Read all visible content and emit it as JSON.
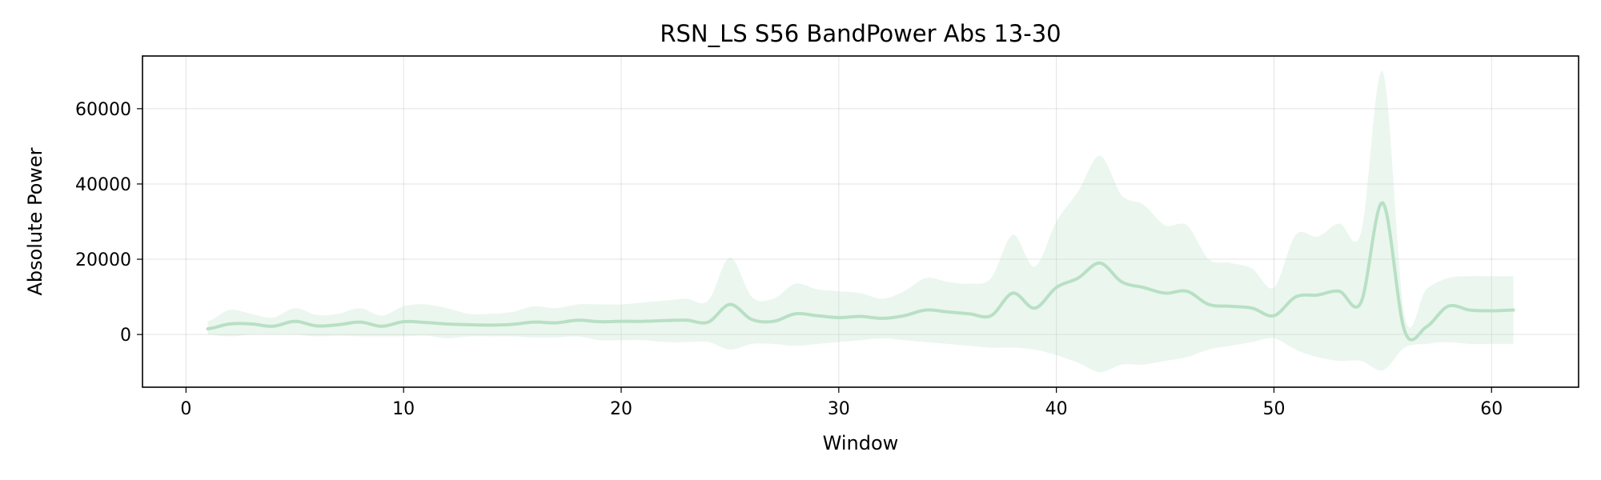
{
  "chart_data": {
    "type": "line",
    "title": "RSN_LS S56 BandPower Abs 13-30",
    "xlabel": "Window",
    "ylabel": "Absolute Power",
    "xlim": [
      -2,
      64
    ],
    "ylim": [
      -14000,
      74000
    ],
    "xticks": [
      0,
      10,
      20,
      30,
      40,
      50,
      60
    ],
    "yticks": [
      0,
      20000,
      40000,
      60000
    ],
    "grid": true,
    "line_color": "#b8e0c4",
    "band_color": "#b8e0c4",
    "x": [
      1,
      2,
      3,
      4,
      5,
      6,
      7,
      8,
      9,
      10,
      11,
      12,
      13,
      14,
      15,
      16,
      17,
      18,
      19,
      20,
      21,
      22,
      23,
      24,
      25,
      26,
      27,
      28,
      29,
      30,
      31,
      32,
      33,
      34,
      35,
      36,
      37,
      38,
      39,
      40,
      41,
      42,
      43,
      44,
      45,
      46,
      47,
      48,
      49,
      50,
      51,
      52,
      53,
      54,
      55,
      56,
      57,
      58,
      59,
      60,
      61
    ],
    "series": [
      {
        "mean": [
          1500,
          2800,
          2800,
          2200,
          3500,
          2300,
          2600,
          3300,
          2200,
          3400,
          3200,
          2800,
          2600,
          2500,
          2700,
          3300,
          3100,
          3800,
          3400,
          3500,
          3500,
          3700,
          3800,
          3300,
          8000,
          4000,
          3500,
          5500,
          5000,
          4500,
          4800,
          4300,
          5000,
          6500,
          6000,
          5500,
          5000,
          11000,
          7000,
          12500,
          15000,
          19000,
          14000,
          12500,
          11000,
          11500,
          8000,
          7500,
          7000,
          5000,
          10000,
          10500,
          11500,
          8500,
          35000,
          1000,
          2000,
          7500,
          6500,
          6300,
          6500
        ],
        "upper": [
          3500,
          6500,
          5500,
          4500,
          7000,
          5200,
          5500,
          7000,
          5000,
          7500,
          8000,
          7000,
          5500,
          5500,
          6000,
          7500,
          7000,
          8000,
          8000,
          8000,
          8500,
          9000,
          9500,
          9000,
          20500,
          10000,
          9500,
          13500,
          12000,
          11500,
          11000,
          9500,
          11500,
          15000,
          14000,
          13500,
          15000,
          26500,
          18000,
          30000,
          38000,
          47500,
          37000,
          34500,
          29000,
          29000,
          20000,
          19000,
          17500,
          12500,
          26500,
          26000,
          29500,
          27000,
          70000,
          5000,
          12000,
          15000,
          15500,
          15500,
          15500
        ],
        "lower": [
          0,
          -500,
          0,
          0,
          0,
          -500,
          -300,
          -500,
          -500,
          -500,
          -300,
          -1000,
          -500,
          -500,
          -500,
          -800,
          -800,
          -500,
          -1500,
          -1500,
          -1500,
          -2000,
          -2000,
          -2000,
          -4000,
          -2500,
          -2500,
          -3000,
          -2500,
          -2000,
          -1500,
          -1000,
          -1500,
          -2000,
          -2500,
          -3000,
          -3500,
          -3500,
          -4000,
          -5500,
          -7500,
          -10000,
          -8000,
          -8000,
          -7000,
          -6000,
          -4000,
          -3000,
          -2000,
          -1000,
          -4000,
          -6000,
          -7000,
          -7000,
          -9500,
          -3500,
          -2500,
          -2000,
          -2500,
          -2500,
          -2500
        ]
      }
    ]
  }
}
